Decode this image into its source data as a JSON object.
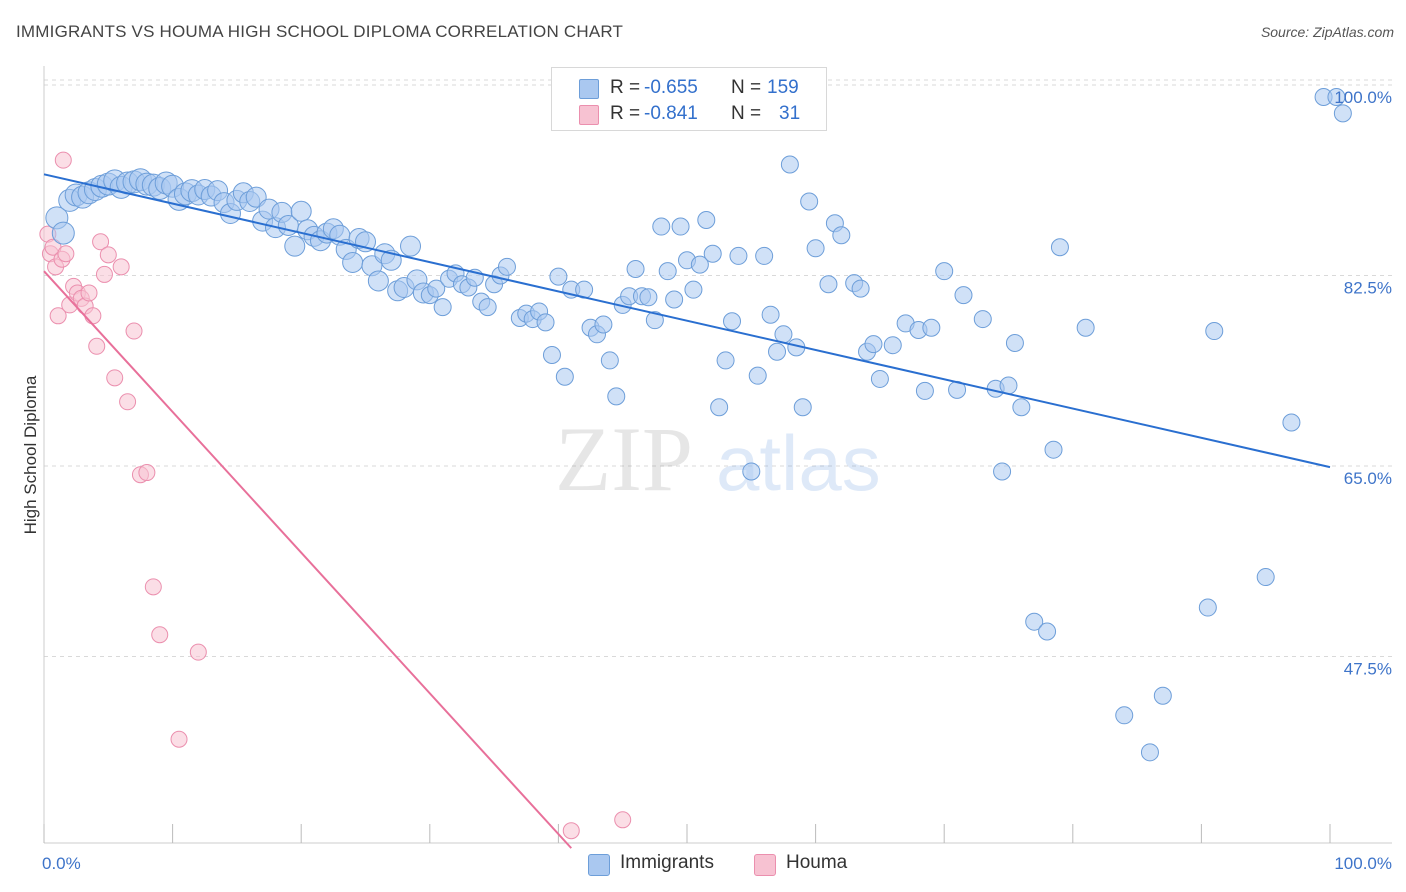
{
  "title": "IMMIGRANTS VS HOUMA HIGH SCHOOL DIPLOMA CORRELATION CHART",
  "source": "Source: ZipAtlas.com",
  "watermark": {
    "zip": "ZIP",
    "atlas": "atlas"
  },
  "colors": {
    "immigrants_fill": "#aac8f0",
    "immigrants_stroke": "#6d9ed9",
    "immigrants_line": "#2a6fd0",
    "houma_fill": "#f7c2d2",
    "houma_stroke": "#eb8fae",
    "houma_line": "#e8709a",
    "tick_label": "#3e74c9",
    "grid": "#d9d9d9"
  },
  "legend_top": {
    "rows": [
      {
        "r_label": "R = ",
        "r_value": "-0.655",
        "n_label": "N = ",
        "n_value": "159"
      },
      {
        "r_label": "R = ",
        "r_value": "-0.841",
        "n_label": "N = ",
        "n_value": "31"
      }
    ]
  },
  "legend_bottom": {
    "items": [
      "Immigrants",
      "Houma"
    ]
  },
  "chart_data": {
    "type": "scatter",
    "title": "IMMIGRANTS VS HOUMA HIGH SCHOOL DIPLOMA CORRELATION CHART",
    "xlabel": "",
    "ylabel": "High School Diploma",
    "xlim": [
      0,
      100
    ],
    "ylim": [
      31,
      101.5
    ],
    "x_tick_labels": [
      "0.0%",
      "100.0%"
    ],
    "y_ticks": [
      {
        "value": 47.5,
        "label": "47.5%"
      },
      {
        "value": 65.0,
        "label": "65.0%"
      },
      {
        "value": 82.5,
        "label": "82.5%"
      },
      {
        "value": 100.0,
        "label": "100.0%"
      }
    ],
    "grid": true,
    "legend_position": "top-center",
    "series": [
      {
        "name": "Immigrants",
        "trend": {
          "x": [
            0,
            100
          ],
          "y": [
            92.9,
            66.0
          ]
        },
        "points": [
          [
            1.0,
            88.9
          ],
          [
            1.5,
            87.5
          ],
          [
            2.0,
            90.5
          ],
          [
            2.5,
            91.0
          ],
          [
            3.0,
            90.8
          ],
          [
            3.5,
            91.2
          ],
          [
            4.0,
            91.5
          ],
          [
            4.5,
            91.8
          ],
          [
            5.0,
            92.0
          ],
          [
            5.5,
            92.3
          ],
          [
            6.0,
            91.7
          ],
          [
            6.5,
            92.1
          ],
          [
            7.0,
            92.2
          ],
          [
            7.5,
            92.4
          ],
          [
            8.0,
            92.0
          ],
          [
            8.5,
            91.9
          ],
          [
            9.0,
            91.6
          ],
          [
            9.5,
            92.1
          ],
          [
            10.0,
            91.8
          ],
          [
            10.5,
            90.6
          ],
          [
            11.0,
            91.1
          ],
          [
            11.5,
            91.4
          ],
          [
            12.0,
            91.0
          ],
          [
            12.5,
            91.5
          ],
          [
            13.0,
            90.9
          ],
          [
            13.5,
            91.4
          ],
          [
            14.0,
            90.3
          ],
          [
            14.5,
            89.3
          ],
          [
            15.0,
            90.5
          ],
          [
            15.5,
            91.2
          ],
          [
            16.0,
            90.4
          ],
          [
            16.5,
            90.8
          ],
          [
            17.0,
            88.6
          ],
          [
            17.5,
            89.7
          ],
          [
            18.0,
            88.0
          ],
          [
            18.5,
            89.4
          ],
          [
            19.0,
            88.2
          ],
          [
            19.5,
            86.3
          ],
          [
            20.0,
            89.5
          ],
          [
            20.5,
            87.8
          ],
          [
            21.0,
            87.2
          ],
          [
            21.5,
            86.8
          ],
          [
            22.0,
            87.5
          ],
          [
            22.5,
            87.9
          ],
          [
            23.0,
            87.3
          ],
          [
            23.5,
            86.0
          ],
          [
            24.0,
            84.8
          ],
          [
            24.5,
            87.0
          ],
          [
            25.0,
            86.7
          ],
          [
            25.5,
            84.5
          ],
          [
            26.0,
            83.1
          ],
          [
            26.5,
            85.6
          ],
          [
            27.0,
            85.0
          ],
          [
            27.5,
            82.2
          ],
          [
            28.0,
            82.5
          ],
          [
            28.5,
            86.3
          ],
          [
            29.0,
            83.2
          ],
          [
            29.5,
            82.0
          ],
          [
            30.0,
            81.8
          ],
          [
            30.5,
            82.4
          ],
          [
            31.0,
            80.7
          ],
          [
            31.5,
            83.3
          ],
          [
            32.0,
            83.8
          ],
          [
            32.5,
            82.8
          ],
          [
            33.0,
            82.5
          ],
          [
            33.5,
            83.4
          ],
          [
            34.0,
            81.2
          ],
          [
            34.5,
            80.7
          ],
          [
            35.0,
            82.8
          ],
          [
            35.5,
            83.6
          ],
          [
            36.0,
            84.4
          ],
          [
            37.0,
            79.7
          ],
          [
            37.5,
            80.1
          ],
          [
            38.0,
            79.6
          ],
          [
            38.5,
            80.3
          ],
          [
            39.0,
            79.3
          ],
          [
            39.5,
            76.3
          ],
          [
            40.0,
            83.5
          ],
          [
            40.5,
            74.3
          ],
          [
            41.0,
            82.3
          ],
          [
            42.0,
            82.3
          ],
          [
            42.5,
            78.8
          ],
          [
            43.0,
            78.2
          ],
          [
            43.5,
            79.1
          ],
          [
            44.0,
            75.8
          ],
          [
            44.5,
            72.5
          ],
          [
            45.0,
            80.9
          ],
          [
            45.5,
            81.7
          ],
          [
            46.0,
            84.2
          ],
          [
            46.5,
            81.7
          ],
          [
            47.0,
            81.6
          ],
          [
            47.5,
            79.5
          ],
          [
            48.0,
            88.1
          ],
          [
            48.5,
            84.0
          ],
          [
            49.0,
            81.4
          ],
          [
            49.5,
            88.1
          ],
          [
            50.0,
            85.0
          ],
          [
            50.5,
            82.3
          ],
          [
            51.0,
            84.6
          ],
          [
            51.5,
            88.7
          ],
          [
            52.0,
            85.6
          ],
          [
            52.5,
            71.5
          ],
          [
            53.0,
            75.8
          ],
          [
            53.5,
            79.4
          ],
          [
            54.0,
            85.4
          ],
          [
            55.0,
            65.6
          ],
          [
            55.5,
            74.4
          ],
          [
            56.0,
            85.4
          ],
          [
            56.5,
            80.0
          ],
          [
            57.0,
            76.6
          ],
          [
            57.5,
            78.2
          ],
          [
            58.0,
            93.8
          ],
          [
            58.5,
            77.0
          ],
          [
            59.0,
            71.5
          ],
          [
            59.5,
            90.4
          ],
          [
            60.0,
            86.1
          ],
          [
            61.0,
            82.8
          ],
          [
            61.5,
            88.4
          ],
          [
            62.0,
            87.3
          ],
          [
            63.0,
            82.9
          ],
          [
            63.5,
            82.4
          ],
          [
            64.0,
            76.6
          ],
          [
            64.5,
            77.3
          ],
          [
            65.0,
            74.1
          ],
          [
            66.0,
            77.2
          ],
          [
            67.0,
            79.2
          ],
          [
            68.0,
            78.6
          ],
          [
            68.5,
            73.0
          ],
          [
            69.0,
            78.8
          ],
          [
            70.0,
            84.0
          ],
          [
            71.0,
            73.1
          ],
          [
            71.5,
            81.8
          ],
          [
            73.0,
            79.6
          ],
          [
            74.0,
            73.2
          ],
          [
            74.5,
            65.6
          ],
          [
            75.0,
            73.5
          ],
          [
            75.5,
            77.4
          ],
          [
            76.0,
            71.5
          ],
          [
            77.0,
            51.8
          ],
          [
            78.0,
            50.9
          ],
          [
            78.5,
            67.6
          ],
          [
            79.0,
            86.2
          ],
          [
            81.0,
            78.8
          ],
          [
            84.0,
            43.2
          ],
          [
            86.0,
            39.8
          ],
          [
            87.0,
            45.0
          ],
          [
            90.5,
            53.1
          ],
          [
            91.0,
            78.5
          ],
          [
            95.0,
            55.9
          ],
          [
            97.0,
            70.1
          ],
          [
            99.5,
            100.0
          ],
          [
            100.5,
            100.0
          ],
          [
            101.0,
            98.5
          ]
        ]
      },
      {
        "name": "Houma",
        "trend": {
          "x": [
            0,
            41
          ],
          "y": [
            84.0,
            31.0
          ]
        },
        "points": [
          [
            0.3,
            87.4
          ],
          [
            0.5,
            85.6
          ],
          [
            0.7,
            86.2
          ],
          [
            0.9,
            84.4
          ],
          [
            1.1,
            79.9
          ],
          [
            1.4,
            85.1
          ],
          [
            1.7,
            85.6
          ],
          [
            2.0,
            80.9
          ],
          [
            2.3,
            82.6
          ],
          [
            2.6,
            82.0
          ],
          [
            2.9,
            81.5
          ],
          [
            3.2,
            80.8
          ],
          [
            3.5,
            82.0
          ],
          [
            3.8,
            79.9
          ],
          [
            4.1,
            77.1
          ],
          [
            4.4,
            86.7
          ],
          [
            4.7,
            83.7
          ],
          [
            5.0,
            85.5
          ],
          [
            5.5,
            74.2
          ],
          [
            6.0,
            84.4
          ],
          [
            6.5,
            72.0
          ],
          [
            7.0,
            78.5
          ],
          [
            7.5,
            65.3
          ],
          [
            8.0,
            65.5
          ],
          [
            8.5,
            55.0
          ],
          [
            9.0,
            50.6
          ],
          [
            10.5,
            41.0
          ],
          [
            12.0,
            49.0
          ],
          [
            1.5,
            94.2
          ],
          [
            41.0,
            32.6
          ],
          [
            45.0,
            33.6
          ]
        ]
      }
    ]
  },
  "axis": {
    "y_label": "High School Diploma",
    "x_left": "0.0%",
    "x_right": "100.0%"
  }
}
